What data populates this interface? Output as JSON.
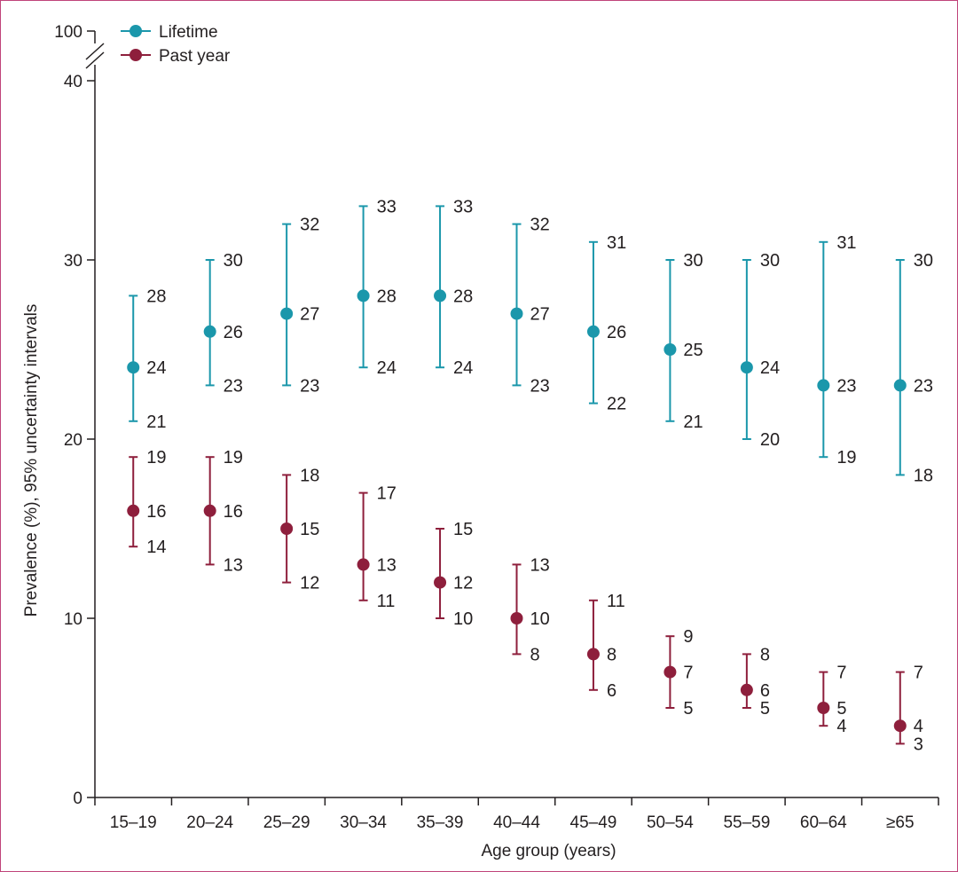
{
  "chart_data": {
    "type": "scatter",
    "title": "",
    "xlabel": "Age group (years)",
    "ylabel": "Prevalence (%), 95% uncertainty intervals",
    "ylim": [
      0,
      40
    ],
    "y_ticks": [
      0,
      10,
      20,
      30,
      40
    ],
    "y_break_tick": 100,
    "categories": [
      "15–19",
      "20–24",
      "25–29",
      "30–34",
      "35–39",
      "40–44",
      "45–49",
      "50–54",
      "55–59",
      "60–64",
      "≥65"
    ],
    "legend_position": "top-left",
    "grid": false,
    "series": [
      {
        "name": "Lifetime",
        "color": "#1b97ab",
        "values": [
          24,
          26,
          27,
          28,
          28,
          27,
          26,
          25,
          24,
          23,
          23
        ],
        "lower": [
          21,
          23,
          23,
          24,
          24,
          23,
          22,
          21,
          20,
          19,
          18
        ],
        "upper": [
          28,
          30,
          32,
          33,
          33,
          32,
          31,
          30,
          30,
          31,
          30
        ]
      },
      {
        "name": "Past year",
        "color": "#8e1f3c",
        "values": [
          16,
          16,
          15,
          13,
          12,
          10,
          8,
          7,
          6,
          5,
          4
        ],
        "lower": [
          14,
          13,
          12,
          11,
          10,
          8,
          6,
          5,
          5,
          4,
          3
        ],
        "upper": [
          19,
          19,
          18,
          17,
          15,
          13,
          11,
          9,
          8,
          7,
          7
        ]
      }
    ]
  }
}
